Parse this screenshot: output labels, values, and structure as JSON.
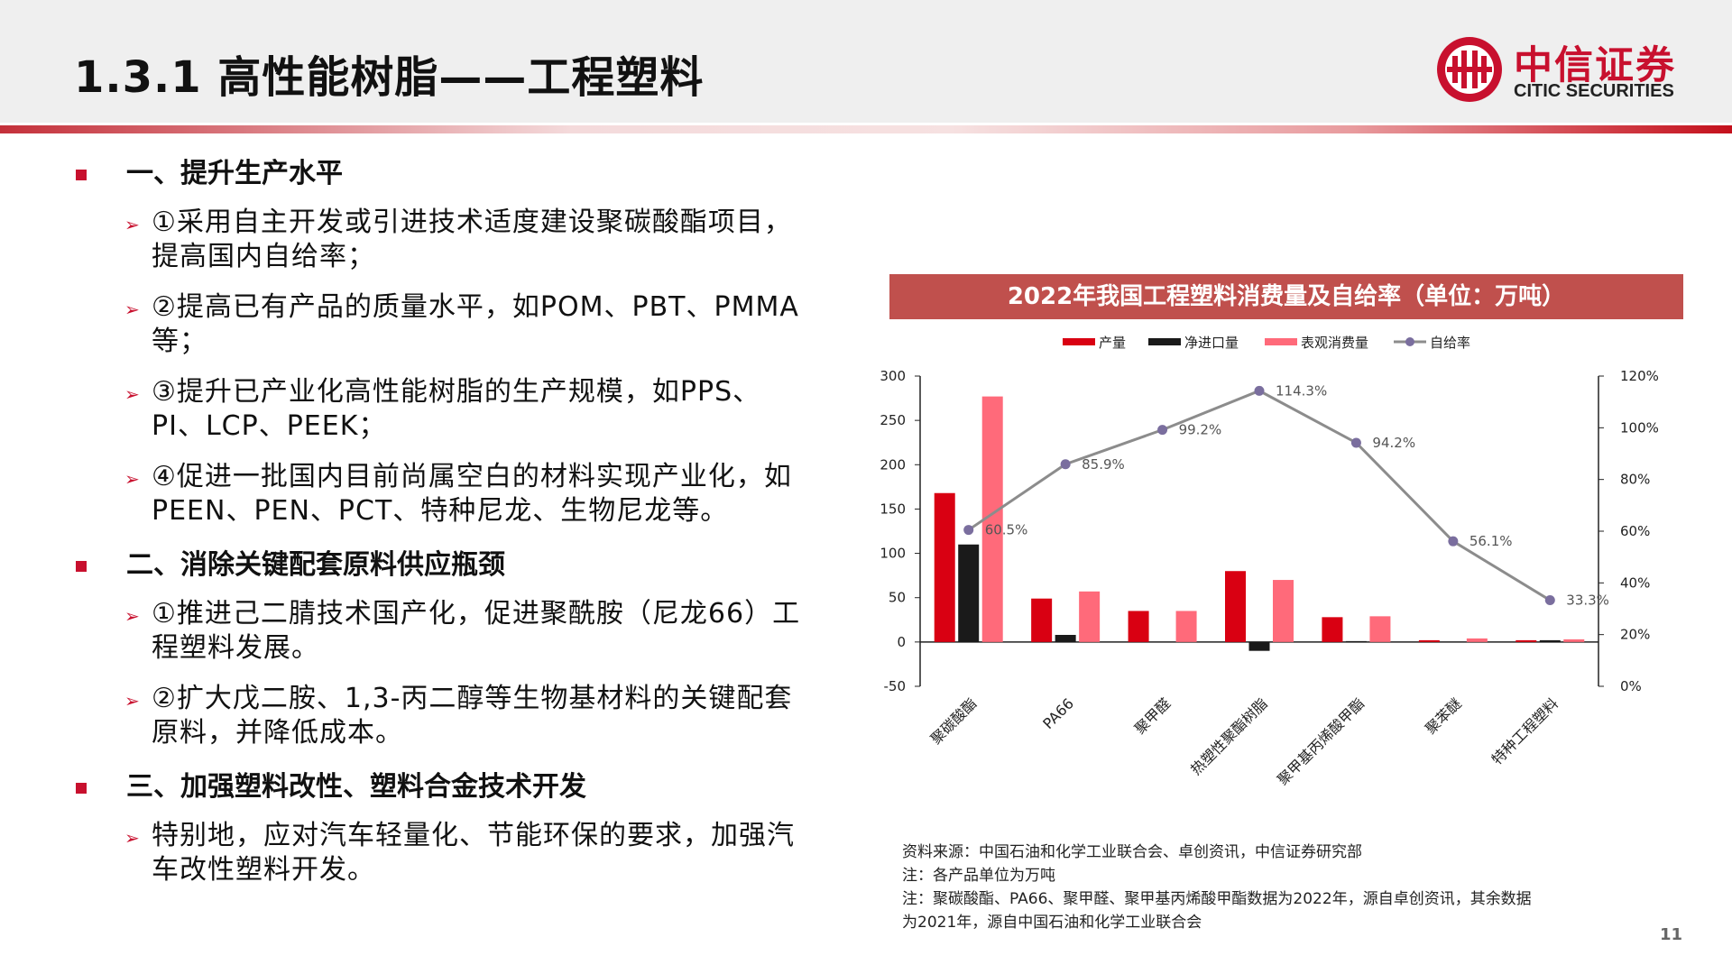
{
  "slide": {
    "title": "1.3.1 高性能树脂——工程塑料",
    "page_number": "11"
  },
  "logo": {
    "cn": "中信证券",
    "en": "CITIC SECURITIES"
  },
  "sections": [
    {
      "heading": "一、提升生产水平",
      "items": [
        "①采用自主开发或引进技术适度建设聚碳酸酯项目，提高国内自给率；",
        "②提高已有产品的质量水平，如POM、PBT、PMMA等；",
        "③提升已产业化高性能树脂的生产规模，如PPS、PI、LCP、PEEK；",
        "④促进一批国内目前尚属空白的材料实现产业化，如PEEN、PEN、PCT、特种尼龙、生物尼龙等。"
      ]
    },
    {
      "heading": "二、消除关键配套原料供应瓶颈",
      "items": [
        "①推进己二腈技术国产化，促进聚酰胺（尼龙66）工程塑料发展。",
        "②扩大戊二胺、1,3-丙二醇等生物基材料的关键配套原料，并降低成本。"
      ]
    },
    {
      "heading": "三、加强塑料改性、塑料合金技术开发",
      "items": [
        "特别地，应对汽车轻量化、节能环保的要求，加强汽车改性塑料开发。"
      ]
    }
  ],
  "chart_banner": "2022年我国工程塑料消费量及自给率（单位：万吨）",
  "chart_data": {
    "type": "bar",
    "title": "2022年我国工程塑料消费量及自给率（单位：万吨）",
    "categories": [
      "聚碳酸酯",
      "PA66",
      "聚甲醛",
      "热塑性聚酯树脂",
      "聚甲基丙烯酸甲酯",
      "聚苯醚",
      "特种工程塑料"
    ],
    "series": [
      {
        "name": "产量",
        "type": "bar",
        "color": "#d90012",
        "values": [
          168,
          49,
          35,
          80,
          28,
          2,
          2
        ]
      },
      {
        "name": "净进口量",
        "type": "bar",
        "color": "#1a1a1a",
        "values": [
          110,
          8,
          0,
          -10,
          1,
          0,
          2
        ]
      },
      {
        "name": "表观消费量",
        "type": "bar",
        "color": "#ff6a7a",
        "values": [
          277,
          57,
          35,
          70,
          29,
          4,
          3
        ]
      },
      {
        "name": "自给率",
        "type": "line",
        "axis": "right",
        "color": "#8c8c8c",
        "marker_color": "#7a6e9e",
        "values": [
          60.5,
          85.9,
          99.2,
          114.3,
          94.2,
          56.1,
          33.3
        ],
        "labels": [
          "60.5%",
          "85.9%",
          "99.2%",
          "114.3%",
          "94.2%",
          "56.1%",
          "33.3%"
        ]
      }
    ],
    "ylim_left": [
      -50,
      300
    ],
    "yticks_left": [
      "300",
      "250",
      "200",
      "150",
      "100",
      "50",
      "0",
      "-50"
    ],
    "ytick_values_left": [
      300,
      250,
      200,
      150,
      100,
      50,
      0,
      -50
    ],
    "ylim_right": [
      0,
      120
    ],
    "yticks_right": [
      "120%",
      "100%",
      "80%",
      "60%",
      "40%",
      "20%",
      "0%"
    ],
    "ytick_values_right": [
      120,
      100,
      80,
      60,
      40,
      20,
      0
    ],
    "legend_position": "top",
    "grid": false
  },
  "notes": [
    "资料来源：中国石油和化学工业联合会、卓创资讯，中信证券研究部",
    "注：各产品单位为万吨",
    "注：聚碳酸酯、PA66、聚甲醛、聚甲基丙烯酸甲酯数据为2022年，源自卓创资讯，其余数据",
    "为2021年，源自中国石油和化学工业联合会"
  ],
  "colors": {
    "brand_red": "#c8102e",
    "banner": "#c0504d"
  }
}
